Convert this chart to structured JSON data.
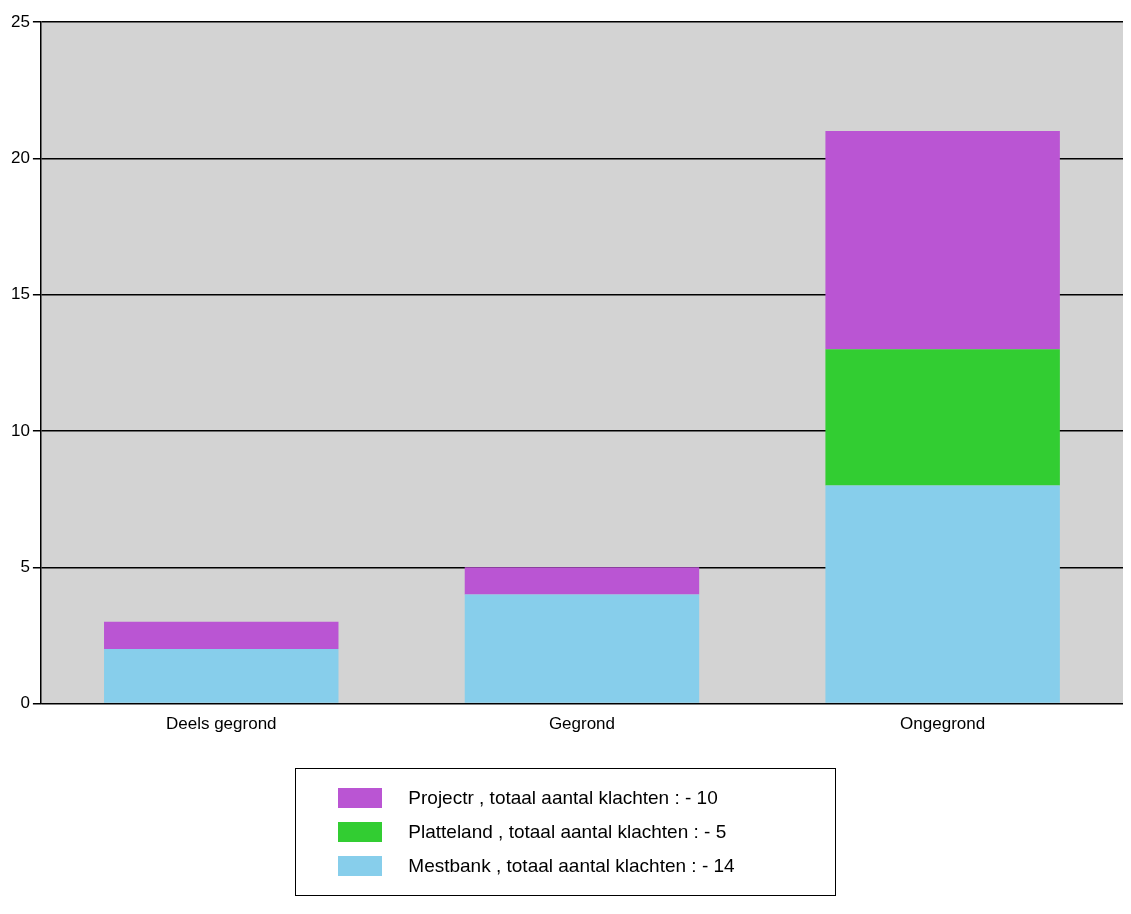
{
  "chart_data": {
    "type": "bar",
    "stacked": true,
    "categories": [
      "Deels gegrond",
      "Gegrond",
      "Ongegrond"
    ],
    "series": [
      {
        "name": "Mestbank , totaal aantal klachten :  - 14",
        "color": "#87ceeb",
        "values": [
          2,
          4,
          8
        ]
      },
      {
        "name": "Platteland , totaal aantal klachten :  - 5",
        "color": "#32cd32",
        "values": [
          0,
          0,
          5
        ]
      },
      {
        "name": "Projectr , totaal aantal klachten :  - 10",
        "color": "#ba55d3",
        "values": [
          1,
          1,
          8
        ]
      }
    ],
    "ylim": [
      0,
      25
    ],
    "yticks": [
      0,
      5,
      10,
      15,
      20,
      25
    ],
    "grid": "y",
    "legend": "bottom"
  }
}
